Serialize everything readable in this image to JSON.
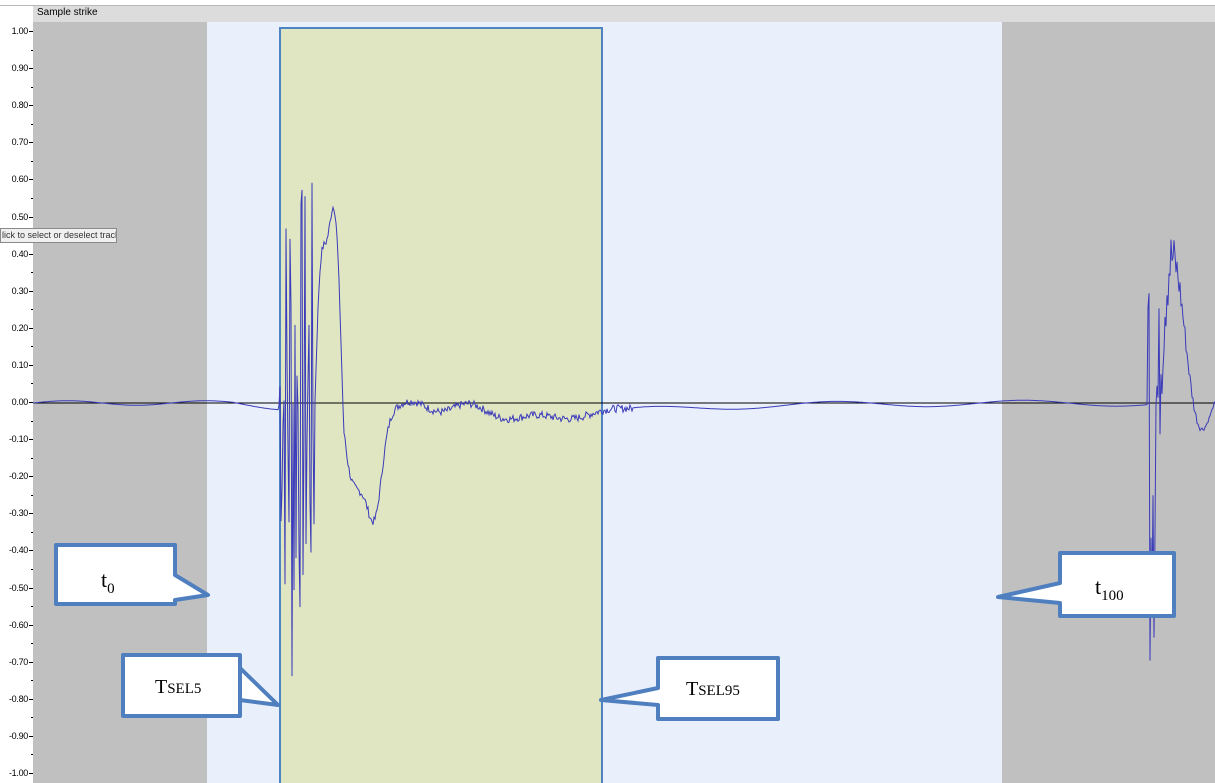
{
  "track": {
    "title": "Sample strike",
    "tooltip": "lick to select or deselect track."
  },
  "amplitude_scale": {
    "labels": [
      "1.00",
      "0.90",
      "0.80",
      "0.70",
      "0.60",
      "0.50",
      "0.40",
      "0.30",
      "0.20",
      "0.10",
      "0.00",
      "-0.10",
      "-0.20",
      "-0.30",
      "-0.40",
      "-0.50",
      "-0.60",
      "-0.70",
      "-0.80",
      "-0.90",
      "-1.00"
    ],
    "min": -1.0,
    "max": 1.0
  },
  "callouts": {
    "t0": {
      "main": "t",
      "sub": "0"
    },
    "t100": {
      "main": "t",
      "sub": "100"
    },
    "tsel5": {
      "main": "T",
      "sub": "SEL5"
    },
    "tsel95": {
      "main": "T",
      "sub": "SEL95"
    }
  },
  "colors": {
    "unselected": "#c0c0c0",
    "selected": "#e9f0fc",
    "sel_window": "#e0e6c2",
    "window_border": "#4f84c4",
    "waveform": "#3a3aba",
    "callout_fill": "#ffffff",
    "callout_border": "#4f7fbf"
  }
}
